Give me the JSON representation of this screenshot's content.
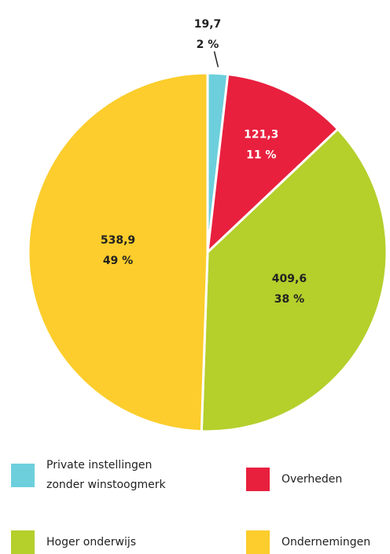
{
  "chart_data": {
    "type": "pie",
    "categories": [
      "Private instellingen zonder winstoogmerk",
      "Overheden",
      "Hoger onderwijs",
      "Ondernemingen"
    ],
    "values": [
      19.7,
      121.3,
      409.6,
      538.9
    ],
    "value_labels": [
      "19,7",
      "121,3",
      "409,6",
      "538,9"
    ],
    "percentages": [
      2,
      11,
      38,
      49
    ],
    "percentage_labels": [
      "2 %",
      "11 %",
      "38 %",
      "49 %"
    ],
    "colors": [
      "#6dcfdc",
      "#e8203e",
      "#b5cf2b",
      "#fccd2c"
    ],
    "legend": "bottom"
  }
}
